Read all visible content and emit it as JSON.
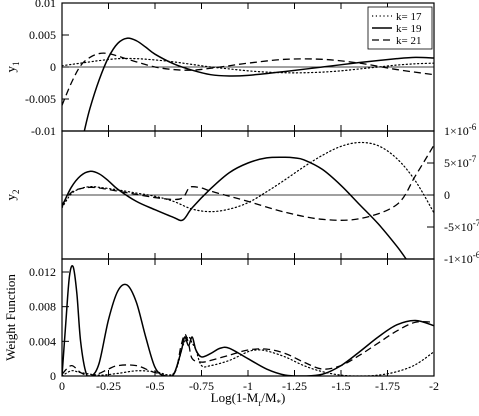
{
  "chart_data": [
    {
      "type": "line",
      "ylabel": "y",
      "ylabel_sub": "1",
      "xlim": [
        0,
        -2
      ],
      "ylim": [
        -0.01,
        0.01
      ],
      "yticks": [
        {
          "value": 0.01,
          "label": "0.01"
        },
        {
          "value": 0.005,
          "label": "0.005"
        },
        {
          "value": 0,
          "label": "0"
        },
        {
          "value": -0.005,
          "label": "-0.005"
        },
        {
          "value": -0.01,
          "label": "-0.01"
        }
      ],
      "zero_line": true,
      "legend": {
        "position": "top-right",
        "entries": [
          {
            "label": "k= 17",
            "style": "dotted"
          },
          {
            "label": "k= 19",
            "style": "solid"
          },
          {
            "label": "k= 21",
            "style": "dashed"
          }
        ]
      },
      "series": [
        {
          "name": "k= 17",
          "style": "dotted",
          "x": [
            0,
            -0.05,
            -0.1,
            -0.15,
            -0.2,
            -0.3,
            -0.4,
            -0.5,
            -0.6,
            -0.7,
            -0.8,
            -0.9,
            -1.0,
            -1.1,
            -1.2,
            -1.3,
            -1.4,
            -1.5,
            -1.6,
            -1.7,
            -1.8,
            -1.9,
            -2.0
          ],
          "y": [
            0.0002,
            0.0004,
            0.0006,
            0.0008,
            0.001,
            0.0013,
            0.0013,
            0.0011,
            0.0008,
            0.0004,
            0.0,
            -0.0003,
            -0.0006,
            -0.0008,
            -0.0009,
            -0.0009,
            -0.0008,
            -0.0006,
            -0.0003,
            0.0,
            0.0003,
            0.0005,
            0.0006
          ]
        },
        {
          "name": "k= 19",
          "style": "solid",
          "x": [
            -0.12,
            -0.15,
            -0.2,
            -0.25,
            -0.3,
            -0.35,
            -0.4,
            -0.45,
            -0.5,
            -0.6,
            -0.7,
            -0.8,
            -0.9,
            -1.0,
            -1.2,
            -1.4,
            -1.6,
            -1.8,
            -1.9,
            -2.0
          ],
          "y": [
            -0.01,
            -0.0065,
            -0.002,
            0.0015,
            0.0037,
            0.0045,
            0.0041,
            0.0031,
            0.002,
            0.0005,
            -0.0005,
            -0.0012,
            -0.0014,
            -0.0013,
            -0.0007,
            0.0,
            0.0007,
            0.0013,
            0.0015,
            0.0014
          ]
        },
        {
          "name": "k= 21",
          "style": "dashed",
          "x": [
            0,
            -0.05,
            -0.1,
            -0.15,
            -0.2,
            -0.25,
            -0.3,
            -0.4,
            -0.5,
            -0.6,
            -0.7,
            -0.8,
            -0.9,
            -1.0,
            -1.2,
            -1.4,
            -1.6,
            -1.8,
            -2.0
          ],
          "y": [
            -0.006,
            -0.0025,
            0.0002,
            0.0015,
            0.0021,
            0.0021,
            0.0017,
            0.0008,
            0.0,
            -0.0004,
            -0.0005,
            -0.0002,
            0.0002,
            0.0006,
            0.0012,
            0.0012,
            0.0006,
            -0.0004,
            -0.0012
          ]
        }
      ]
    },
    {
      "type": "line",
      "ylabel": "y",
      "ylabel_sub": "2",
      "xlim": [
        0,
        -2
      ],
      "ylim": [
        -1e-06,
        1e-06
      ],
      "y_axis_side": "right",
      "yticks": [
        {
          "value": 1e-06,
          "mantissa": "1",
          "exp": "-6"
        },
        {
          "value": 5e-07,
          "mantissa": "5",
          "exp": "-7"
        },
        {
          "value": 0,
          "mantissa": "0",
          "exp": ""
        },
        {
          "value": -5e-07,
          "mantissa": "-5",
          "exp": "-7"
        },
        {
          "value": -1e-06,
          "mantissa": "-1",
          "exp": "-6"
        }
      ],
      "zero_line": true,
      "series": [
        {
          "name": "k= 17",
          "style": "dotted",
          "x": [
            0,
            -0.05,
            -0.1,
            -0.15,
            -0.2,
            -0.3,
            -0.4,
            -0.5,
            -0.6,
            -0.7,
            -0.8,
            -0.9,
            -1.0,
            -1.1,
            -1.2,
            -1.3,
            -1.4,
            -1.5,
            -1.6,
            -1.7,
            -1.8,
            -1.9,
            -2.0
          ],
          "y": [
            -2e-07,
            2e-08,
            1e-07,
            1.3e-07,
            1.2e-07,
            8e-08,
            3e-08,
            -2e-08,
            -1e-07,
            -2.2e-07,
            -2.6e-07,
            -2.2e-07,
            -1.2e-07,
            5e-08,
            2.4e-07,
            4.4e-07,
            6.2e-07,
            7.6e-07,
            8.2e-07,
            7.7e-07,
            5.7e-07,
            2.2e-07,
            -2.8e-07
          ]
        },
        {
          "name": "k= 19",
          "style": "solid",
          "x": [
            0,
            -0.05,
            -0.1,
            -0.15,
            -0.2,
            -0.25,
            -0.3,
            -0.4,
            -0.5,
            -0.6,
            -0.65,
            -0.7,
            -0.8,
            -0.9,
            -1.0,
            -1.1,
            -1.2,
            -1.25,
            -1.3,
            -1.4,
            -1.5,
            -1.6,
            -1.7,
            -1.8,
            -1.85
          ],
          "y": [
            -1.8e-07,
            1.2e-07,
            3e-07,
            3.7e-07,
            3.3e-07,
            2.2e-07,
            9e-08,
            -1e-07,
            -2.3e-07,
            -3.5e-07,
            -3.9e-07,
            -2e-07,
            1e-07,
            3.5e-07,
            5e-07,
            5.8e-07,
            5.9e-07,
            5.8e-07,
            5.5e-07,
            4e-07,
            1.5e-07,
            -1.5e-07,
            -4.5e-07,
            -8e-07,
            -1e-06
          ]
        },
        {
          "name": "k= 21",
          "style": "dashed",
          "x": [
            0,
            -0.05,
            -0.1,
            -0.15,
            -0.2,
            -0.3,
            -0.4,
            -0.5,
            -0.6,
            -0.65,
            -0.68,
            -0.7,
            -0.75,
            -0.8,
            -0.9,
            -1.0,
            -1.2,
            -1.4,
            -1.6,
            -1.8,
            -1.9,
            -2.0
          ],
          "y": [
            -1.5e-07,
            4e-08,
            1e-07,
            1.2e-07,
            1.1e-07,
            6e-08,
            1e-08,
            -4e-08,
            -7e-08,
            -4e-08,
            1e-07,
            1.3e-07,
            1.1e-07,
            6e-08,
            -2e-08,
            -1e-07,
            -2.7e-07,
            -3.8e-07,
            -3.7e-07,
            -1.5e-07,
            3e-07,
            7.8e-07
          ]
        }
      ]
    },
    {
      "type": "line",
      "ylabel": "Weight Function",
      "xlabel": "Log(1-M",
      "xlabel_sub": "r",
      "xlabel_mid": "/M",
      "xlabel_sub2": "*",
      "xlabel_end": ")",
      "xlim": [
        0,
        -2
      ],
      "ylim": [
        0,
        0.0135
      ],
      "yticks": [
        {
          "value": 0.012,
          "label": "0.012"
        },
        {
          "value": 0.008,
          "label": "0.008"
        },
        {
          "value": 0.004,
          "label": "0.004"
        },
        {
          "value": 0,
          "label": "0"
        }
      ],
      "xticks": [
        {
          "value": 0,
          "label": "0"
        },
        {
          "value": -0.25,
          "label": "-0.25"
        },
        {
          "value": -0.5,
          "label": "-0.5"
        },
        {
          "value": -0.75,
          "label": "-0.75"
        },
        {
          "value": -1,
          "label": "-1"
        },
        {
          "value": -1.25,
          "label": "-1.25"
        },
        {
          "value": -1.5,
          "label": "-1.5"
        },
        {
          "value": -1.75,
          "label": "-1.75"
        },
        {
          "value": -2,
          "label": "-2"
        }
      ],
      "series": [
        {
          "name": "k= 17",
          "style": "dotted",
          "x": [
            0,
            -0.05,
            -0.1,
            -0.2,
            -0.3,
            -0.4,
            -0.5,
            -0.6,
            -0.65,
            -0.68,
            -0.7,
            -0.72,
            -0.75,
            -0.8,
            -0.9,
            -1.0,
            -1.05,
            -1.1,
            -1.2,
            -1.3,
            -1.4,
            -1.5,
            -1.6,
            -1.7,
            -1.8,
            -1.9,
            -2.0
          ],
          "y": [
            0.0,
            0.0006,
            0.0004,
            0.0001,
            0.0003,
            0.0006,
            0.0005,
            0.0003,
            0.0035,
            0.0045,
            0.0038,
            0.003,
            0.0012,
            0.0012,
            0.0018,
            0.0028,
            0.003,
            0.0029,
            0.0022,
            0.0012,
            0.0005,
            0.0001,
            0.0,
            0.0001,
            0.0005,
            0.0013,
            0.0028
          ]
        },
        {
          "name": "k= 19",
          "style": "solid",
          "x": [
            0,
            -0.02,
            -0.04,
            -0.06,
            -0.08,
            -0.1,
            -0.13,
            -0.16,
            -0.2,
            -0.25,
            -0.3,
            -0.35,
            -0.4,
            -0.45,
            -0.5,
            -0.55,
            -0.6,
            -0.64,
            -0.66,
            -0.68,
            -0.7,
            -0.72,
            -0.75,
            -0.8,
            -0.85,
            -0.9,
            -1.0,
            -1.1,
            -1.2,
            -1.3,
            -1.4,
            -1.5,
            -1.6,
            -1.7,
            -1.8,
            -1.9,
            -2.0
          ],
          "y": [
            0.0,
            0.006,
            0.0115,
            0.0126,
            0.0095,
            0.004,
            0.0003,
            0.0,
            0.0015,
            0.0065,
            0.0098,
            0.0105,
            0.0085,
            0.0045,
            0.001,
            0.0,
            0.0002,
            0.0028,
            0.0045,
            0.0035,
            0.0045,
            0.003,
            0.0022,
            0.0026,
            0.0032,
            0.0032,
            0.002,
            0.0008,
            0.0001,
            0.0,
            0.0002,
            0.0012,
            0.0028,
            0.0045,
            0.0059,
            0.0064,
            0.0058
          ]
        },
        {
          "name": "k= 21",
          "style": "dashed",
          "x": [
            0,
            -0.05,
            -0.1,
            -0.15,
            -0.2,
            -0.25,
            -0.3,
            -0.4,
            -0.5,
            -0.6,
            -0.64,
            -0.66,
            -0.68,
            -0.7,
            -0.75,
            -0.8,
            -0.9,
            -1.0,
            -1.1,
            -1.2,
            -1.3,
            -1.4,
            -1.5,
            -1.6,
            -1.7,
            -1.8,
            -1.9,
            -2.0
          ],
          "y": [
            0.0002,
            0.0012,
            0.0004,
            0.0,
            0.0003,
            0.0008,
            0.0012,
            0.0012,
            0.0004,
            0.0002,
            0.0035,
            0.0048,
            0.0038,
            0.002,
            0.0016,
            0.0018,
            0.0024,
            0.003,
            0.0031,
            0.0026,
            0.0016,
            0.0008,
            0.0012,
            0.0024,
            0.0038,
            0.0052,
            0.0062,
            0.0062
          ]
        }
      ]
    }
  ]
}
